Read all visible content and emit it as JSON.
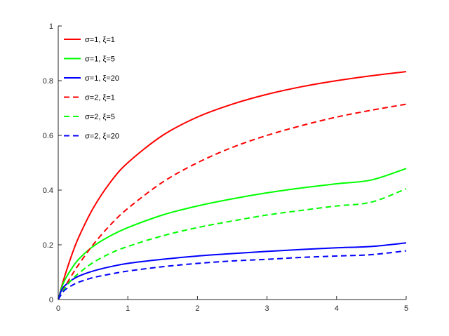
{
  "chart_data": {
    "type": "line",
    "title": "",
    "xlabel": "",
    "ylabel": "",
    "xlim": [
      0,
      5
    ],
    "ylim": [
      0,
      1
    ],
    "xticks": [
      "0",
      "1",
      "2",
      "3",
      "4",
      "5"
    ],
    "yticks": [
      "0",
      "0.2",
      "0.4",
      "0.6",
      "0.8",
      "1"
    ],
    "grid": false,
    "legend_position": "top-left",
    "x": [
      0,
      0.05,
      0.1,
      0.2,
      0.3,
      0.5,
      0.75,
      1,
      1.5,
      2,
      2.5,
      3,
      3.5,
      4,
      4.5,
      5
    ],
    "series": [
      {
        "name": "σ=1, ξ=1",
        "color": "#ff0000",
        "dash": "solid",
        "values": [
          0,
          0.048,
          0.091,
          0.167,
          0.231,
          0.333,
          0.429,
          0.5,
          0.6,
          0.667,
          0.714,
          0.75,
          0.778,
          0.8,
          0.818,
          0.833
        ]
      },
      {
        "name": "σ=1, ξ=5",
        "color": "#00ff00",
        "dash": "solid",
        "values": [
          0,
          0.044,
          0.074,
          0.116,
          0.149,
          0.194,
          0.233,
          0.263,
          0.309,
          0.342,
          0.368,
          0.39,
          0.408,
          0.423,
          0.437,
          0.479
        ]
      },
      {
        "name": "σ=1, ξ=20",
        "color": "#0000ff",
        "dash": "solid",
        "values": [
          0,
          0.036,
          0.052,
          0.072,
          0.086,
          0.104,
          0.12,
          0.132,
          0.147,
          0.159,
          0.168,
          0.176,
          0.183,
          0.189,
          0.194,
          0.207
        ]
      },
      {
        "name": "σ=2, ξ=1",
        "color": "#ff0000",
        "dash": "dashed",
        "values": [
          0,
          0.024,
          0.048,
          0.091,
          0.13,
          0.2,
          0.273,
          0.333,
          0.429,
          0.5,
          0.556,
          0.6,
          0.636,
          0.667,
          0.692,
          0.714
        ]
      },
      {
        "name": "σ=2, ξ=5",
        "color": "#00ff00",
        "dash": "dashed",
        "values": [
          0,
          0.023,
          0.044,
          0.074,
          0.097,
          0.135,
          0.169,
          0.194,
          0.233,
          0.263,
          0.287,
          0.309,
          0.326,
          0.342,
          0.356,
          0.405
        ]
      },
      {
        "name": "σ=2, ξ=20",
        "color": "#0000ff",
        "dash": "dashed",
        "values": [
          0,
          0.021,
          0.036,
          0.052,
          0.064,
          0.08,
          0.093,
          0.104,
          0.12,
          0.132,
          0.141,
          0.147,
          0.154,
          0.159,
          0.164,
          0.178
        ]
      }
    ]
  }
}
